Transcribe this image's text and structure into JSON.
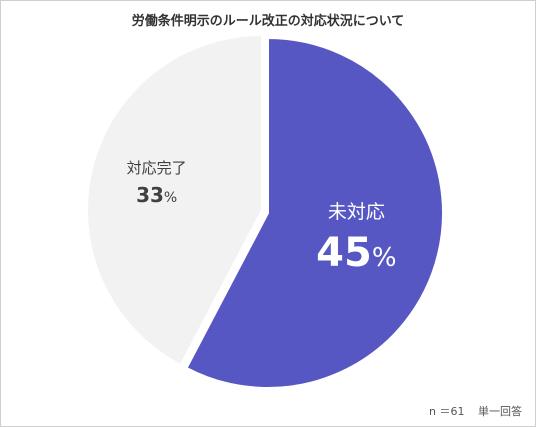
{
  "chart_data": {
    "type": "pie",
    "title": "労働条件明示のルール改正の対応状況について",
    "slices": [
      {
        "label": "未対応",
        "value": 45,
        "display": "45",
        "unit": "%",
        "color": "#5757c4",
        "text_color": "#ffffff"
      },
      {
        "label": "対応完了",
        "value": 33,
        "display": "33",
        "unit": "%",
        "color": "#f2f2f2",
        "text_color": "#404040"
      }
    ]
  },
  "note": {
    "sample": "n ＝61",
    "answer_type": "単一回答"
  }
}
